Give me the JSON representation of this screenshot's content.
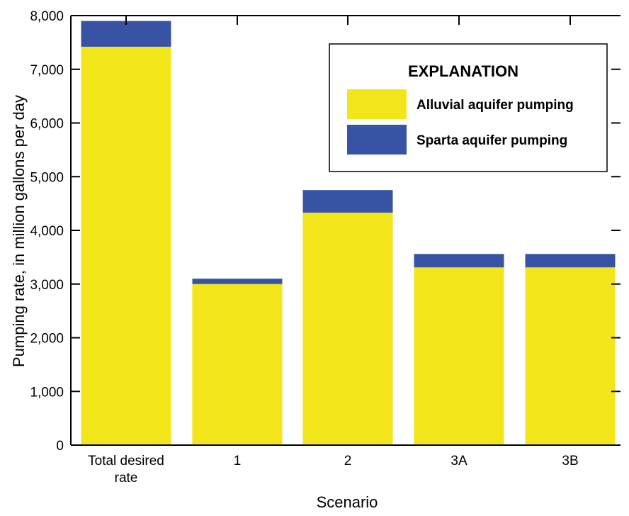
{
  "chart_data": {
    "type": "bar",
    "stacked": true,
    "categories": [
      "Total desired rate",
      "1",
      "2",
      "3A",
      "3B"
    ],
    "category_label_lines": [
      [
        "Total desired",
        "rate"
      ],
      [
        "1"
      ],
      [
        "2"
      ],
      [
        "3A"
      ],
      [
        "3B"
      ]
    ],
    "series": [
      {
        "name": "Alluvial aquifer pumping",
        "color": "#f2e61a",
        "values": [
          7420,
          3000,
          4330,
          3310,
          3310
        ]
      },
      {
        "name": "Sparta aquifer pumping",
        "color": "#3953a4",
        "values": [
          480,
          100,
          420,
          250,
          250
        ]
      }
    ],
    "xlabel": "Scenario",
    "ylabel": "Pumping rate, in million gallons per day",
    "ylim": [
      0,
      8000
    ],
    "yticks": [
      0,
      1000,
      2000,
      3000,
      4000,
      5000,
      6000,
      7000,
      8000
    ],
    "ytick_labels": [
      "0",
      "1,000",
      "2,000",
      "3,000",
      "4,000",
      "5,000",
      "6,000",
      "7,000",
      "8,000"
    ],
    "legend": {
      "title": "EXPLANATION",
      "position": "top-right"
    },
    "grid": false
  }
}
